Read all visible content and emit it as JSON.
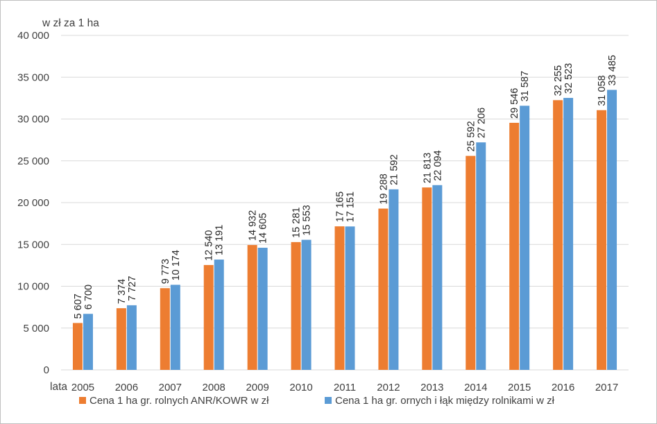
{
  "chart_data": {
    "type": "bar",
    "ylabel": "w zł za 1 ha",
    "xlabel": "lata",
    "categories": [
      "2005",
      "2006",
      "2007",
      "2008",
      "2009",
      "2010",
      "2011",
      "2012",
      "2013",
      "2014",
      "2015",
      "2016",
      "2017"
    ],
    "ylim": [
      0,
      40000
    ],
    "yticks": [
      0,
      5000,
      10000,
      15000,
      20000,
      25000,
      30000,
      35000,
      40000
    ],
    "ytick_labels": [
      "0",
      "5 000",
      "10 000",
      "15 000",
      "20 000",
      "25 000",
      "30 000",
      "35 000",
      "40 000"
    ],
    "grid": true,
    "legend_position": "bottom",
    "series": [
      {
        "name": "Cena 1 ha gr. rolnych ANR/KOWR w zł",
        "color": "#ED7D31",
        "values": [
          5607,
          7374,
          9773,
          12540,
          14932,
          15281,
          17165,
          19288,
          21813,
          25592,
          29546,
          32255,
          31058
        ],
        "labels": [
          "5 607",
          "7 374",
          "9 773",
          "12 540",
          "14 932",
          "15 281",
          "17 165",
          "19 288",
          "21 813",
          "25 592",
          "29 546",
          "32 255",
          "31 058"
        ]
      },
      {
        "name": "Cena 1 ha gr. ornych i łąk między rolnikami w zł",
        "color": "#5B9BD5",
        "values": [
          6700,
          7727,
          10174,
          13191,
          14605,
          15553,
          17151,
          21592,
          22094,
          27206,
          31587,
          32523,
          33485
        ],
        "labels": [
          "6 700",
          "7 727",
          "10 174",
          "13 191",
          "14 605",
          "15 553",
          "17 151",
          "21 592",
          "22 094",
          "27 206",
          "31 587",
          "32 523",
          "33 485"
        ]
      }
    ]
  }
}
